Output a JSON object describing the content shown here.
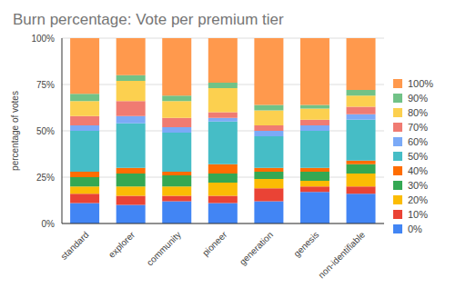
{
  "chart_data": {
    "type": "bar",
    "title": "Burn percentage: Vote per premium tier",
    "y_label": "percentage of votes",
    "categories": [
      "standard",
      "explorer",
      "community",
      "pioneer",
      "generation",
      "genesis",
      "non-identifiable"
    ],
    "stacked": true,
    "grid": true,
    "legend": "right",
    "ylim": [
      0,
      100
    ],
    "yticks": [
      {
        "value": 0,
        "label": "0%"
      },
      {
        "value": 25,
        "label": "25%"
      },
      {
        "value": 50,
        "label": "50%"
      },
      {
        "value": 75,
        "label": "75%"
      },
      {
        "value": 100,
        "label": "100%"
      }
    ],
    "series": [
      {
        "name": "0%",
        "color": "#4285f4",
        "values": [
          11,
          10,
          12,
          11,
          12,
          17,
          16
        ]
      },
      {
        "name": "10%",
        "color": "#ea4335",
        "values": [
          5,
          5,
          3,
          4,
          7,
          3,
          4
        ]
      },
      {
        "name": "20%",
        "color": "#fbbc04",
        "values": [
          4,
          5,
          5,
          7,
          5,
          3,
          7
        ]
      },
      {
        "name": "30%",
        "color": "#34a853",
        "values": [
          5,
          7,
          6,
          5,
          4,
          5,
          5
        ]
      },
      {
        "name": "40%",
        "color": "#ff6d01",
        "values": [
          3,
          3,
          2,
          5,
          2,
          2,
          2
        ]
      },
      {
        "name": "50%",
        "color": "#46bdc6",
        "values": [
          22,
          24,
          21,
          23,
          17,
          20,
          22
        ]
      },
      {
        "name": "60%",
        "color": "#7baaf7",
        "values": [
          3,
          4,
          3,
          2,
          3,
          3,
          3
        ]
      },
      {
        "name": "70%",
        "color": "#f07b72",
        "values": [
          5,
          8,
          5,
          3,
          3,
          3,
          4
        ]
      },
      {
        "name": "80%",
        "color": "#fcd04f",
        "values": [
          8,
          11,
          9,
          13,
          8,
          6,
          6
        ]
      },
      {
        "name": "90%",
        "color": "#71c287",
        "values": [
          4,
          3,
          3,
          3,
          3,
          2,
          3
        ]
      },
      {
        "name": "100%",
        "color": "#ff994d",
        "values": [
          30,
          20,
          31,
          24,
          36,
          36,
          28
        ]
      }
    ]
  }
}
